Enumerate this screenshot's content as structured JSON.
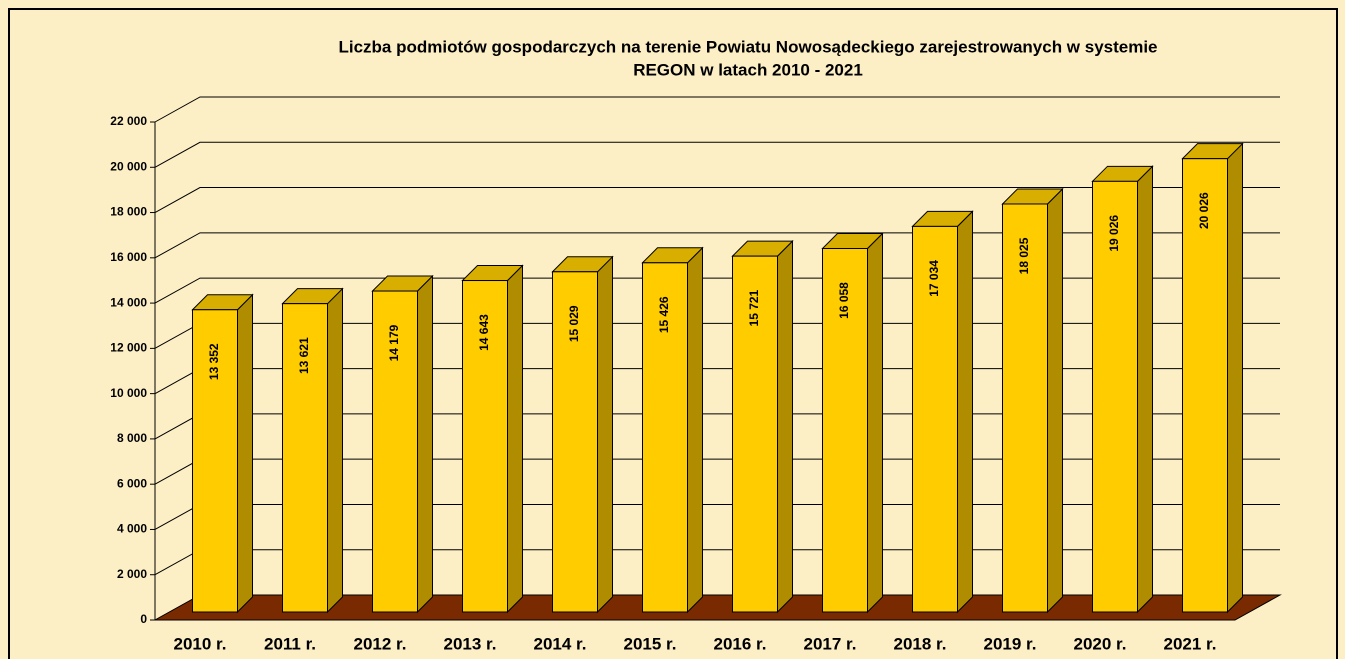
{
  "chart_data": {
    "type": "bar3d",
    "title": "Liczba podmiotów gospodarczych na terenie Powiatu Nowosądeckiego zarejestrowanych w systemie",
    "subtitle": "REGON  w latach 2010 - 2021",
    "categories": [
      "2010 r.",
      "2011 r.",
      "2012 r.",
      "2013 r.",
      "2014 r.",
      "2015 r.",
      "2016 r.",
      "2017 r.",
      "2018 r.",
      "2019 r.",
      "2020 r.",
      "2021 r."
    ],
    "values": [
      13352,
      13621,
      14179,
      14643,
      15029,
      15426,
      15721,
      16058,
      17034,
      18025,
      19026,
      20026
    ],
    "value_labels": [
      "13 352",
      "13 621",
      "14 179",
      "14 643",
      "15 029",
      "15 426",
      "15 721",
      "16 058",
      "17 034",
      "18 025",
      "19 026",
      "20 026"
    ],
    "color": "#ffcc00",
    "ylim": [
      0,
      22000
    ],
    "yticks": [
      0,
      {
        "value": 2000,
        "label": "2 000"
      },
      {
        "value": 4000,
        "label": "4 000"
      },
      {
        "value": 6000,
        "label": "6 000"
      },
      {
        "value": 8000,
        "label": "8 000"
      },
      {
        "value": 10000,
        "label": "10 000"
      },
      {
        "value": 12000,
        "label": "12 000"
      },
      {
        "value": 14000,
        "label": "14 000"
      },
      {
        "value": 16000,
        "label": "16 000"
      },
      {
        "value": 18000,
        "label": "18 000"
      },
      {
        "value": 20000,
        "label": "20 000"
      },
      {
        "value": 22000,
        "label": "22 000"
      }
    ],
    "grid": true
  }
}
